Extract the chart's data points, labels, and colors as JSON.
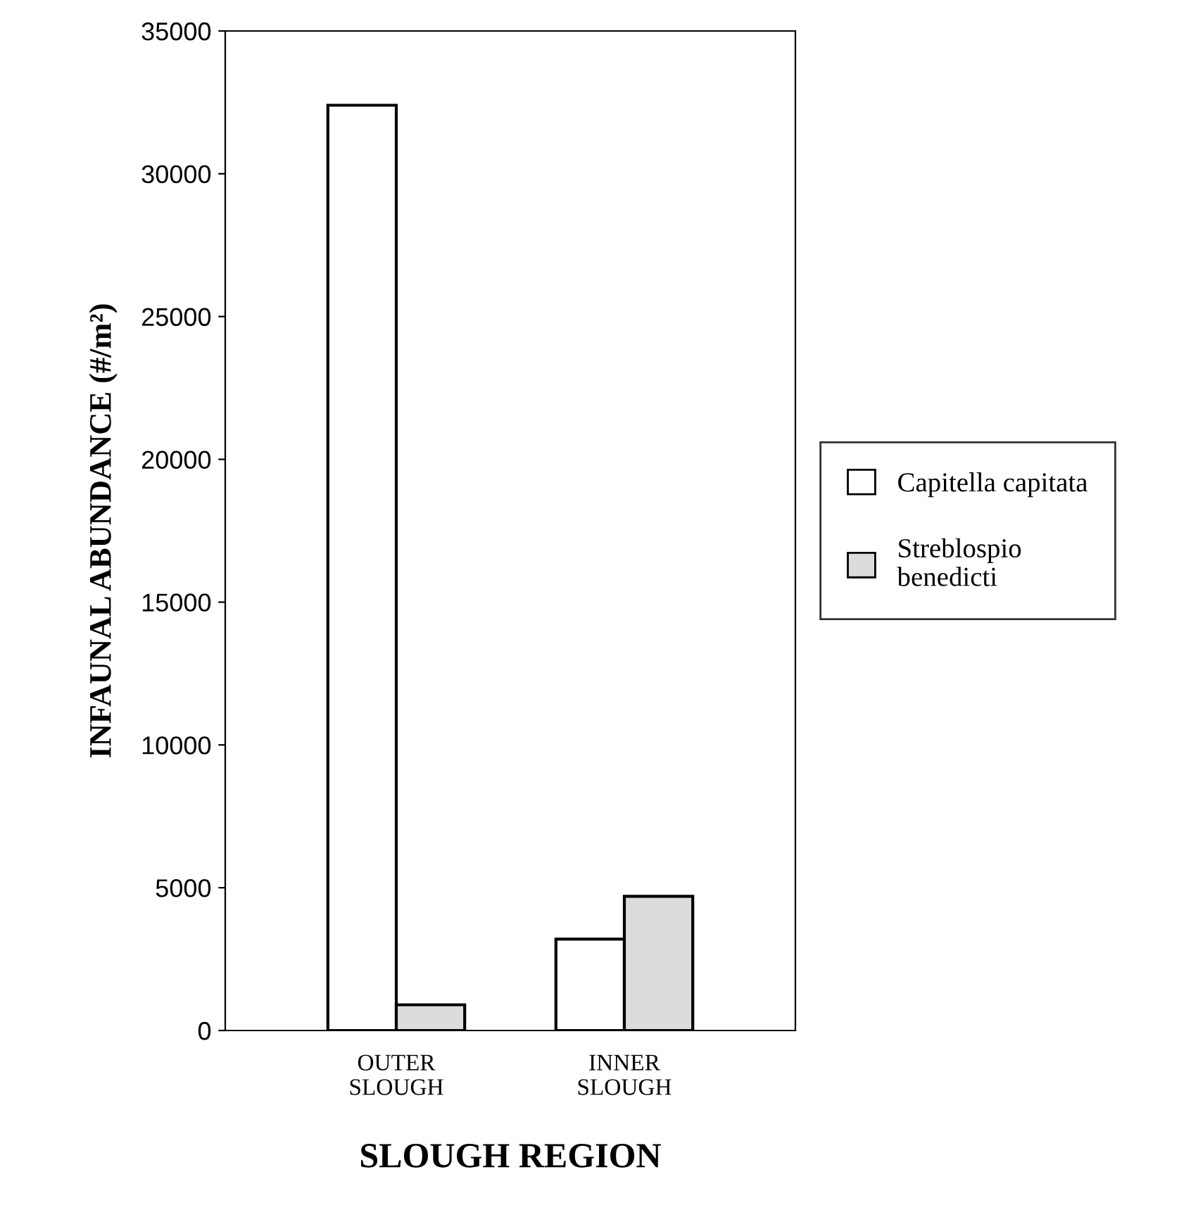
{
  "chart_data": {
    "type": "bar",
    "xlabel": "SLOUGH REGION",
    "ylabel": "INFAUNAL ABUNDANCE (#/m²)",
    "categories": [
      "OUTER\nSLOUGH",
      "INNER\nSLOUGH"
    ],
    "series": [
      {
        "name": "Capitella capitata",
        "color": "#ffffff",
        "values": [
          32400,
          3200
        ]
      },
      {
        "name": "Streblospio\nbenedicti",
        "color": "#dcdcdc",
        "values": [
          900,
          4700
        ]
      }
    ],
    "ylim": [
      0,
      35000
    ],
    "yticks": [
      0,
      5000,
      10000,
      15000,
      20000,
      25000,
      30000,
      35000
    ],
    "grid": false,
    "legend": "right"
  }
}
